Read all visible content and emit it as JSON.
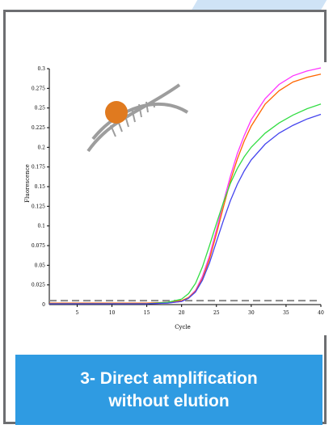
{
  "caption": {
    "line1": "3- Direct amplification",
    "line2": "without elution"
  },
  "chart_data": {
    "type": "line",
    "xlabel": "Cycle",
    "ylabel": "Fluorescence",
    "xlim": [
      1,
      40
    ],
    "ylim": [
      0,
      0.3
    ],
    "x_ticks": [
      5,
      10,
      15,
      20,
      25,
      30,
      35,
      40
    ],
    "y_ticks": [
      0.025,
      0.05,
      0.075,
      0.1,
      0.125,
      0.15,
      0.175,
      0.2,
      0.225,
      0.25,
      0.275,
      0.3
    ],
    "threshold": 0.005,
    "grid": false,
    "series": [
      {
        "color": "#ff33ff",
        "x": [
          1,
          5,
          10,
          15,
          18,
          20,
          21,
          22,
          23,
          24,
          25,
          26,
          27,
          28,
          29,
          30,
          32,
          34,
          36,
          38,
          40
        ],
        "y": [
          0.001,
          0.001,
          0.001,
          0.001,
          0.002,
          0.004,
          0.009,
          0.018,
          0.036,
          0.062,
          0.095,
          0.13,
          0.163,
          0.192,
          0.215,
          0.235,
          0.262,
          0.28,
          0.291,
          0.297,
          0.301
        ]
      },
      {
        "color": "#ff6600",
        "x": [
          1,
          5,
          10,
          15,
          18,
          20,
          21,
          22,
          23,
          24,
          25,
          26,
          27,
          28,
          29,
          30,
          32,
          34,
          36,
          38,
          40
        ],
        "y": [
          0.002,
          0.002,
          0.002,
          0.002,
          0.003,
          0.005,
          0.009,
          0.017,
          0.033,
          0.058,
          0.09,
          0.124,
          0.157,
          0.185,
          0.208,
          0.227,
          0.255,
          0.272,
          0.283,
          0.289,
          0.293
        ]
      },
      {
        "color": "#33dd44",
        "x": [
          1,
          5,
          10,
          15,
          18,
          20,
          21,
          22,
          23,
          24,
          25,
          26,
          27,
          28,
          29,
          30,
          32,
          34,
          36,
          38,
          40
        ],
        "y": [
          0.001,
          0.001,
          0.001,
          0.001,
          0.003,
          0.007,
          0.014,
          0.027,
          0.048,
          0.075,
          0.103,
          0.13,
          0.154,
          0.173,
          0.188,
          0.2,
          0.218,
          0.231,
          0.241,
          0.249,
          0.255
        ]
      },
      {
        "color": "#4444ee",
        "x": [
          1,
          5,
          10,
          15,
          18,
          20,
          21,
          22,
          23,
          24,
          25,
          26,
          27,
          28,
          29,
          30,
          32,
          34,
          36,
          38,
          40
        ],
        "y": [
          0.001,
          0.001,
          0.001,
          0.001,
          0.002,
          0.004,
          0.008,
          0.016,
          0.031,
          0.053,
          0.08,
          0.107,
          0.132,
          0.153,
          0.17,
          0.184,
          0.204,
          0.218,
          0.228,
          0.236,
          0.242
        ]
      }
    ]
  }
}
